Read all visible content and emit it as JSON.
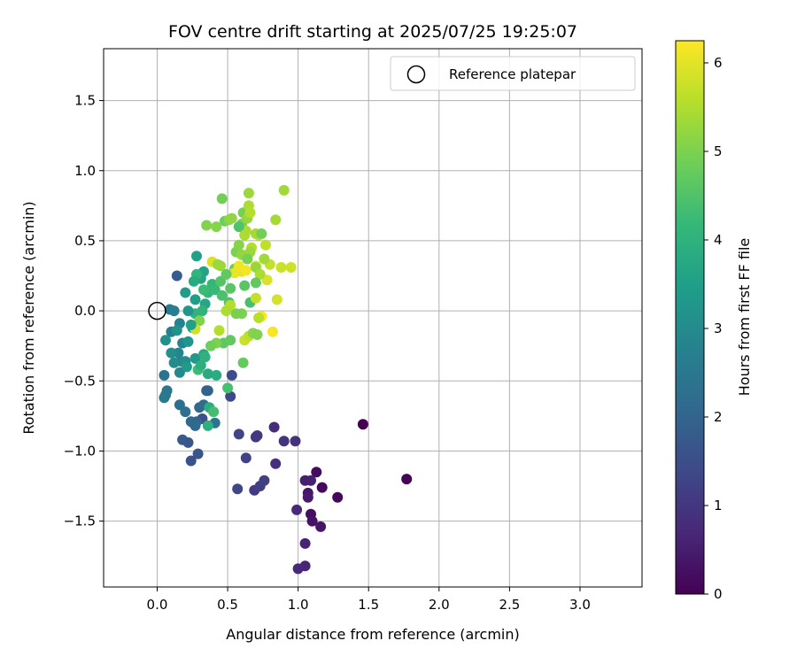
{
  "chart_data": {
    "type": "scatter",
    "title": "FOV centre drift starting at 2025/07/25 19:25:07",
    "xlabel": "Angular distance from reference (arcmin)",
    "ylabel": "Rotation from reference (arcmin)",
    "xlim": [
      -0.38,
      3.44
    ],
    "ylim": [
      -1.97,
      1.87
    ],
    "x_ticks": [
      0.0,
      0.5,
      1.0,
      1.5,
      2.0,
      2.5,
      3.0
    ],
    "x_tick_labels": [
      "0.0",
      "0.5",
      "1.0",
      "1.5",
      "2.0",
      "2.5",
      "3.0"
    ],
    "y_ticks": [
      -1.5,
      -1.0,
      -0.5,
      0.0,
      0.5,
      1.0,
      1.5
    ],
    "y_tick_labels": [
      "−1.5",
      "−1.0",
      "−0.5",
      "0.0",
      "0.5",
      "1.0",
      "1.5"
    ],
    "grid": true,
    "legend": {
      "position": "top-right",
      "entries": [
        {
          "label": "Reference platepar",
          "marker": "open-circle"
        }
      ]
    },
    "reference_point": {
      "x": 0.0,
      "y": 0.0
    },
    "colorbar": {
      "label": "Hours from first FF file",
      "range": [
        0,
        6.25
      ],
      "ticks": [
        0,
        1,
        2,
        3,
        4,
        5,
        6
      ],
      "tick_labels": [
        "0",
        "1",
        "2",
        "3",
        "4",
        "5",
        "6"
      ],
      "colormap": "viridis"
    },
    "colormap_stops": [
      "#440154",
      "#482878",
      "#3e4989",
      "#31688e",
      "#26828e",
      "#1f9e89",
      "#35b779",
      "#6ece58",
      "#b5de2b",
      "#fde725"
    ],
    "series": [
      {
        "points": [
          [
            1.46,
            -0.81,
            0.0
          ],
          [
            1.77,
            -1.2,
            0.05
          ],
          [
            1.28,
            -1.33,
            0.1
          ],
          [
            1.17,
            -1.26,
            0.15
          ],
          [
            1.13,
            -1.15,
            0.2
          ],
          [
            1.09,
            -1.45,
            0.25
          ],
          [
            1.1,
            -1.5,
            0.3
          ],
          [
            1.16,
            -1.54,
            0.35
          ],
          [
            1.07,
            -1.3,
            0.4
          ],
          [
            1.07,
            -1.33,
            0.45
          ],
          [
            1.05,
            -1.21,
            0.5
          ],
          [
            1.09,
            -1.21,
            0.55
          ],
          [
            1.05,
            -1.66,
            0.6
          ],
          [
            1.05,
            -1.82,
            0.65
          ],
          [
            1.0,
            -1.84,
            0.7
          ],
          [
            0.99,
            -1.42,
            0.75
          ],
          [
            0.83,
            -0.83,
            0.8
          ],
          [
            0.84,
            -1.09,
            0.85
          ],
          [
            0.98,
            -0.93,
            0.9
          ],
          [
            0.9,
            -0.93,
            0.95
          ],
          [
            0.71,
            -0.89,
            1.0
          ],
          [
            0.7,
            -0.9,
            1.05
          ],
          [
            0.69,
            -1.28,
            1.1
          ],
          [
            0.73,
            -1.25,
            1.15
          ],
          [
            0.76,
            -1.21,
            1.2
          ],
          [
            0.63,
            -1.05,
            1.25
          ],
          [
            0.58,
            -0.88,
            1.3
          ],
          [
            0.57,
            -1.27,
            1.35
          ],
          [
            0.52,
            -0.61,
            1.4
          ],
          [
            0.53,
            -0.46,
            1.45
          ],
          [
            0.32,
            -0.77,
            1.55
          ],
          [
            0.24,
            -1.07,
            1.6
          ],
          [
            0.29,
            -1.02,
            1.65
          ],
          [
            0.22,
            -0.94,
            1.7
          ],
          [
            0.18,
            -0.92,
            1.75
          ],
          [
            0.14,
            0.25,
            1.8
          ],
          [
            0.35,
            -0.57,
            1.9
          ],
          [
            0.36,
            -0.57,
            1.95
          ],
          [
            0.28,
            -0.79,
            2.0
          ],
          [
            0.24,
            -0.79,
            2.05
          ],
          [
            0.3,
            -0.69,
            2.1
          ],
          [
            0.27,
            -0.82,
            2.15
          ],
          [
            0.33,
            -0.67,
            2.2
          ],
          [
            0.16,
            -0.67,
            2.25
          ],
          [
            0.2,
            -0.72,
            2.3
          ],
          [
            0.41,
            -0.8,
            2.35
          ],
          [
            0.05,
            -0.46,
            2.4
          ],
          [
            0.06,
            -0.6,
            2.45
          ],
          [
            0.07,
            -0.57,
            2.5
          ],
          [
            0.05,
            -0.62,
            2.55
          ],
          [
            0.09,
            0.01,
            2.6
          ],
          [
            0.12,
            0.0,
            2.65
          ],
          [
            0.1,
            -0.15,
            2.7
          ],
          [
            0.16,
            -0.09,
            2.75
          ],
          [
            0.18,
            -0.23,
            2.8
          ],
          [
            0.15,
            -0.3,
            2.85
          ],
          [
            0.17,
            -0.36,
            2.9
          ],
          [
            0.16,
            -0.44,
            2.95
          ],
          [
            0.12,
            -0.37,
            3.0
          ],
          [
            0.2,
            -0.36,
            3.05
          ],
          [
            0.1,
            -0.3,
            3.1
          ],
          [
            0.06,
            -0.21,
            3.15
          ],
          [
            0.14,
            -0.14,
            3.2
          ],
          [
            0.22,
            -0.22,
            3.25
          ],
          [
            0.25,
            -0.12,
            3.3
          ],
          [
            0.27,
            -0.34,
            3.35
          ],
          [
            0.21,
            -0.4,
            3.4
          ],
          [
            0.2,
            0.13,
            3.45
          ],
          [
            0.27,
            0.08,
            3.5
          ],
          [
            0.28,
            0.39,
            3.55
          ],
          [
            0.33,
            0.28,
            3.6
          ],
          [
            0.31,
            0.23,
            3.65
          ],
          [
            0.34,
            0.05,
            3.7
          ],
          [
            0.33,
            -0.31,
            3.75
          ],
          [
            0.36,
            -0.45,
            3.8
          ],
          [
            0.42,
            -0.46,
            3.85
          ],
          [
            0.37,
            -0.69,
            3.9
          ],
          [
            0.36,
            -0.82,
            3.95
          ],
          [
            0.27,
            -0.02,
            4.0
          ],
          [
            0.32,
            0.0,
            4.05
          ],
          [
            0.36,
            0.13,
            4.1
          ],
          [
            0.39,
            0.19,
            4.15
          ],
          [
            0.41,
            0.15,
            4.2
          ],
          [
            0.33,
            0.15,
            4.25
          ],
          [
            0.29,
            -0.42,
            4.3
          ],
          [
            0.4,
            -0.72,
            4.35
          ],
          [
            0.5,
            -0.55,
            4.4
          ],
          [
            0.46,
            0.11,
            4.45
          ],
          [
            0.51,
            0.06,
            4.5
          ],
          [
            0.45,
            0.21,
            4.55
          ],
          [
            0.52,
            0.16,
            4.6
          ],
          [
            0.47,
            -0.23,
            4.65
          ],
          [
            0.52,
            -0.21,
            4.7
          ],
          [
            0.61,
            -0.37,
            4.75
          ],
          [
            0.55,
            0.3,
            4.8
          ],
          [
            0.48,
            0.64,
            4.85
          ],
          [
            0.46,
            0.8,
            4.9
          ],
          [
            0.61,
            0.7,
            4.95
          ],
          [
            0.6,
            0.62,
            5.0
          ],
          [
            0.35,
            0.61,
            5.05
          ],
          [
            0.42,
            0.6,
            5.1
          ],
          [
            0.51,
            0.65,
            5.15
          ],
          [
            0.53,
            0.66,
            5.2
          ],
          [
            0.64,
            0.66,
            5.25
          ],
          [
            0.65,
            0.84,
            5.3
          ],
          [
            0.9,
            0.86,
            5.35
          ],
          [
            0.84,
            0.65,
            5.4
          ],
          [
            0.65,
            0.75,
            5.45
          ],
          [
            0.63,
            0.57,
            5.5
          ],
          [
            0.67,
            0.45,
            5.55
          ],
          [
            0.72,
            0.54,
            5.6
          ],
          [
            0.77,
            0.47,
            5.65
          ],
          [
            0.8,
            0.33,
            5.7
          ],
          [
            0.88,
            0.31,
            5.75
          ],
          [
            0.95,
            0.31,
            5.8
          ],
          [
            0.85,
            0.08,
            5.85
          ],
          [
            0.78,
            0.22,
            5.9
          ],
          [
            0.7,
            0.32,
            5.95
          ],
          [
            0.6,
            0.28,
            6.0
          ],
          [
            0.55,
            0.27,
            6.05
          ],
          [
            0.58,
            0.32,
            6.1
          ],
          [
            0.63,
            0.29,
            6.15
          ],
          [
            0.74,
            -0.04,
            6.2
          ],
          [
            0.82,
            -0.15,
            6.2
          ],
          [
            0.39,
            0.35,
            5.9
          ],
          [
            0.56,
            0.42,
            5.0
          ],
          [
            0.6,
            0.4,
            5.2
          ],
          [
            0.66,
            0.42,
            5.3
          ],
          [
            0.7,
            0.55,
            5.4
          ],
          [
            0.74,
            0.55,
            4.9
          ],
          [
            0.62,
            0.18,
            4.6
          ],
          [
            0.66,
            0.06,
            4.4
          ],
          [
            0.7,
            0.09,
            5.7
          ],
          [
            0.72,
            -0.05,
            5.6
          ],
          [
            0.62,
            -0.21,
            5.75
          ],
          [
            0.65,
            -0.18,
            5.65
          ],
          [
            0.68,
            -0.16,
            5.1
          ],
          [
            0.71,
            -0.17,
            5.05
          ],
          [
            0.6,
            -0.02,
            5.0
          ],
          [
            0.56,
            -0.02,
            4.95
          ],
          [
            0.52,
            0.04,
            5.55
          ],
          [
            0.49,
            0.0,
            5.45
          ],
          [
            0.44,
            -0.14,
            5.55
          ],
          [
            0.42,
            -0.23,
            5.0
          ],
          [
            0.38,
            -0.25,
            4.85
          ],
          [
            0.45,
            0.32,
            5.3
          ],
          [
            0.49,
            0.26,
            4.7
          ],
          [
            0.28,
            0.26,
            4.05
          ],
          [
            0.26,
            0.21,
            3.8
          ],
          [
            0.3,
            -0.07,
            5.05
          ],
          [
            0.27,
            -0.13,
            5.8
          ],
          [
            0.24,
            -0.1,
            3.55
          ],
          [
            0.22,
            0.0,
            3.3
          ],
          [
            0.34,
            -0.33,
            4.0
          ],
          [
            0.31,
            -0.39,
            3.95
          ],
          [
            0.43,
            0.33,
            5.3
          ],
          [
            0.58,
            0.6,
            4.5
          ],
          [
            0.62,
            0.54,
            5.45
          ],
          [
            0.66,
            0.7,
            5.55
          ],
          [
            0.76,
            0.37,
            5.35
          ],
          [
            0.7,
            0.31,
            5.25
          ],
          [
            0.73,
            0.26,
            5.45
          ],
          [
            0.7,
            0.2,
            4.7
          ],
          [
            0.64,
            0.37,
            4.95
          ],
          [
            0.58,
            0.47,
            5.1
          ]
        ]
      }
    ]
  }
}
